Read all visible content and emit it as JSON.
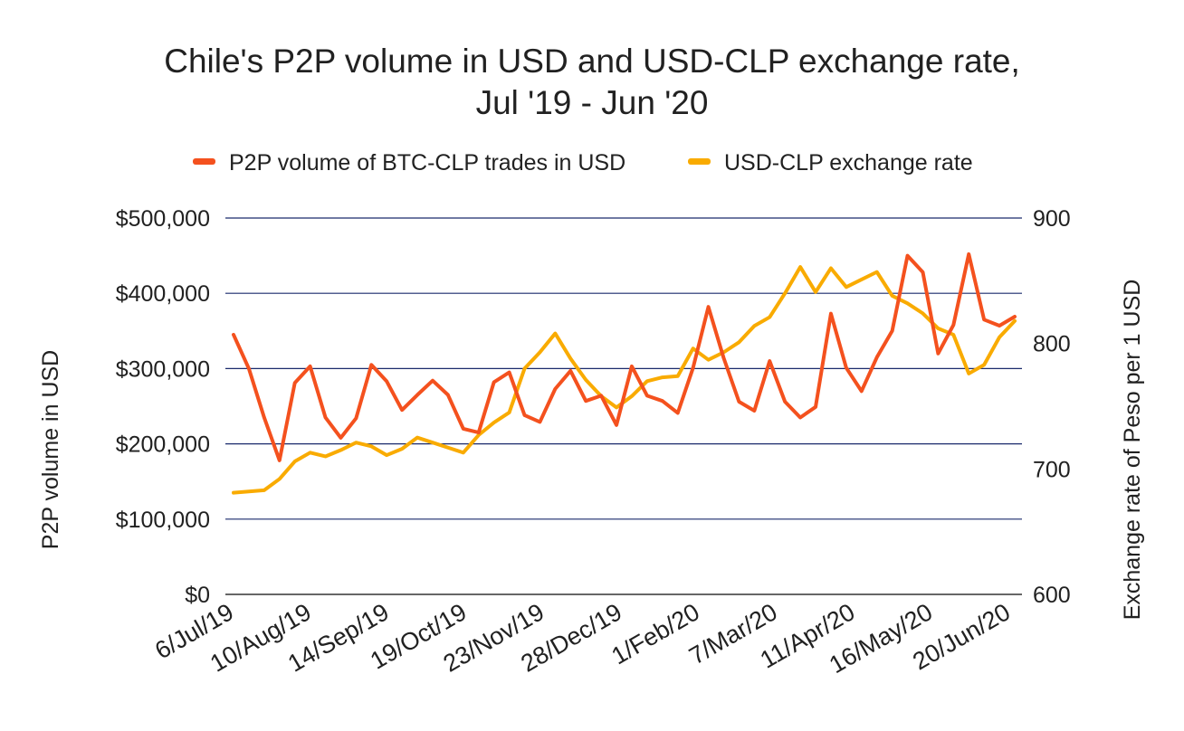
{
  "chart_data": {
    "type": "line",
    "title": [
      "Chile's P2P volume in USD and USD-CLP exchange rate,",
      "Jul '19 - Jun '20"
    ],
    "legend": {
      "placement": "top-center",
      "items": [
        {
          "label": "P2P volume of BTC-CLP trades in USD",
          "color": "#F4511E"
        },
        {
          "label": "USD-CLP exchange rate",
          "color": "#F9AB00"
        }
      ]
    },
    "y_left": {
      "label": "P2P volume in USD",
      "range": [
        0,
        500000
      ],
      "ticks": [
        0,
        100000,
        200000,
        300000,
        400000,
        500000
      ],
      "tick_labels": [
        "$0",
        "$100,000",
        "$200,000",
        "$300,000",
        "$400,000",
        "$500,000"
      ]
    },
    "y_right": {
      "label": "Exchange rate of Peso per 1 USD",
      "range": [
        600,
        900
      ],
      "ticks": [
        600,
        700,
        800,
        900
      ],
      "tick_labels": [
        "600",
        "700",
        "800",
        "900"
      ]
    },
    "x_tick_labels": [
      "6/Jul/19",
      "10/Aug/19",
      "14/Sep/19",
      "19/Oct/19",
      "23/Nov/19",
      "28/Dec/19",
      "1/Feb/20",
      "7/Mar/20",
      "11/Apr/20",
      "16/May/20",
      "20/Jun/20"
    ],
    "grid": true,
    "series": [
      {
        "name": "P2P volume of BTC-CLP trades in USD",
        "axis": "left",
        "color": "#F4511E",
        "values": [
          345000,
          300000,
          235000,
          178000,
          281000,
          303000,
          235000,
          208000,
          234000,
          305000,
          283000,
          245000,
          265000,
          284000,
          265000,
          220000,
          215000,
          282000,
          295000,
          238000,
          229000,
          273000,
          297000,
          257000,
          264000,
          225000,
          303000,
          264000,
          257000,
          241000,
          301000,
          382000,
          314000,
          256000,
          244000,
          310000,
          256000,
          235000,
          249000,
          373000,
          301000,
          270000,
          315000,
          350000,
          450000,
          428000,
          320000,
          358000,
          452000,
          365000,
          357000,
          369000
        ]
      },
      {
        "name": "USD-CLP exchange rate",
        "axis": "right",
        "color": "#F9AB00",
        "values": [
          681,
          682,
          683,
          692,
          706,
          713,
          710,
          715,
          721,
          718,
          711,
          716,
          725,
          721,
          717,
          713,
          727,
          737,
          745,
          780,
          793,
          808,
          788,
          771,
          758,
          749,
          758,
          770,
          773,
          774,
          796,
          787,
          793,
          801,
          814,
          821,
          840,
          861,
          841,
          860,
          845,
          851,
          857,
          838,
          832,
          824,
          812,
          807,
          776,
          783,
          805,
          818
        ]
      }
    ]
  }
}
